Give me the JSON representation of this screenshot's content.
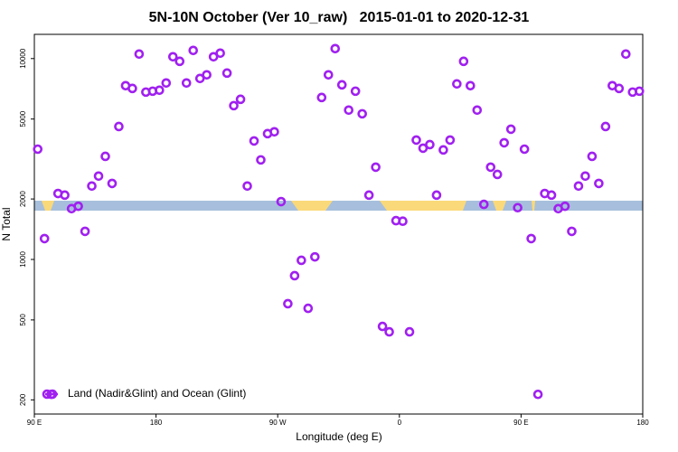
{
  "chart_data": {
    "type": "scatter",
    "title": "5N-10N October (Ver 10_raw)   2015-01-01 to 2020-12-31",
    "x_label": "Longitude (deg E)",
    "y_label": "N Total",
    "log_y": true,
    "legend": "lower left",
    "xlim": [
      90,
      540
    ],
    "xticks": [
      {
        "value": 90,
        "label": "90 E"
      },
      180,
      {
        "value": 270,
        "label": "90 W"
      },
      {
        "value": 360,
        "label": "0"
      },
      {
        "value": 450,
        "label": "90 E"
      },
      {
        "value": 540,
        "label": "180"
      }
    ],
    "ylim": [
      170,
      13200
    ],
    "yticks": [
      200,
      500,
      1000,
      2000,
      5000,
      10000
    ],
    "series": [
      {
        "name": "Land (Nadir&Glint) and Ocean (Glint)",
        "color": "#a020f0",
        "x": [
          92.5,
          97.5,
          102.5,
          107.5,
          112.5,
          117.5,
          122.5,
          127.5,
          132.5,
          137.5,
          142.5,
          147.5,
          152.5,
          157.5,
          162.5,
          167.5,
          172.5,
          177.5,
          182.5,
          187.5,
          192.5,
          197.5,
          202.5,
          207.5,
          212.5,
          217.5,
          222.5,
          227.5,
          232.5,
          237.5,
          242.5,
          247.5,
          252.5,
          257.5,
          262.5,
          267.5,
          272.5,
          277.5,
          282.5,
          287.5,
          292.5,
          297.5,
          302.5,
          307.5,
          312.5,
          317.5,
          322.5,
          327.5,
          332.5,
          337.5,
          342.5,
          347.5,
          352.5,
          357.5,
          362.5,
          367.5,
          372.5,
          377.5,
          382.5,
          387.5,
          392.5,
          397.5,
          402.5,
          407.5,
          412.5,
          417.5,
          422.5,
          427.5,
          432.5,
          437.5,
          442.5,
          447.5,
          452.5,
          457.5,
          462.5,
          467.5,
          472.5,
          477.5,
          482.5,
          487.5,
          492.5,
          497.5,
          502.5,
          507.5,
          512.5,
          517.5,
          522.5,
          527.5,
          532.5,
          537.5
        ],
        "values": [
          3540,
          1270,
          213,
          2130,
          2090,
          1790,
          1840,
          1380,
          2320,
          2600,
          3260,
          2390,
          4590,
          7330,
          7100,
          10530,
          6810,
          6880,
          6960,
          7560,
          10210,
          9690,
          7560,
          10980,
          7960,
          8300,
          10210,
          10640,
          8470,
          5830,
          6270,
          2320,
          3890,
          3130,
          4230,
          4320,
          1940,
          602,
          830,
          990,
          571,
          1030,
          6400,
          8300,
          11210,
          7400,
          5540,
          6880,
          5310,
          2090,
          2880,
          464,
          436,
          1560,
          1550,
          436,
          3930,
          3580,
          3730,
          2090,
          3510,
          3930,
          7480,
          9690,
          7330,
          5540,
          1880,
          2880,
          2650,
          3810,
          4450,
          1810,
          3540,
          1270,
          213,
          2130,
          2090,
          1790,
          1840,
          1380,
          2320,
          2600,
          3260,
          2390,
          4590,
          7330,
          7100,
          10530,
          6810,
          6880
        ]
      }
    ]
  }
}
